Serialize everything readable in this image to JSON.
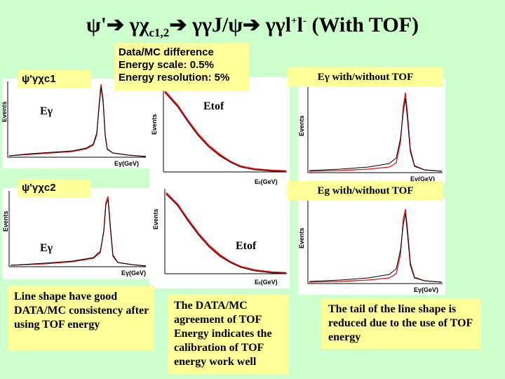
{
  "title": {
    "psi": "ψ'",
    "chi": "γχ",
    "chi_sub": "c1,2",
    "jpsi": "γγJ/ψ",
    "ll": "γγl",
    "plus": "+",
    "l": "l",
    "minus": "-",
    "suffix": "(With TOF)"
  },
  "note": {
    "line1": "Data/MC difference",
    "line2": "Energy scale: 0.5%",
    "line3": "Energy resolution: 5%"
  },
  "labels": {
    "chic1": "ψ'γχc1",
    "chic2": "ψ'γχc2",
    "egamma_top": "Eγ",
    "egamma_bottom": "Eγ",
    "etof_top": "Etof",
    "etof_bottom": "Etof",
    "eg_with_without_top": "Eγ with/without TOF",
    "eg_with_without_bottom": "Eg with/without TOF"
  },
  "axes": {
    "events": "Events",
    "egev": "Eγ(GeV)",
    "etgev": "Eₜ(GeV)"
  },
  "captions": {
    "left": "Line shape  have good DATA/MC consistency after using TOF energy",
    "middle": "The DATA/MC agreement of TOF Energy indicates the calibration of TOF energy work well",
    "right": "The tail of the line shape is reduced due to the use of TOF energy"
  },
  "colors": {
    "background": "#ccffcc",
    "yellow": "#ffff99",
    "mc": "#dd1111",
    "data": "#000000"
  }
}
